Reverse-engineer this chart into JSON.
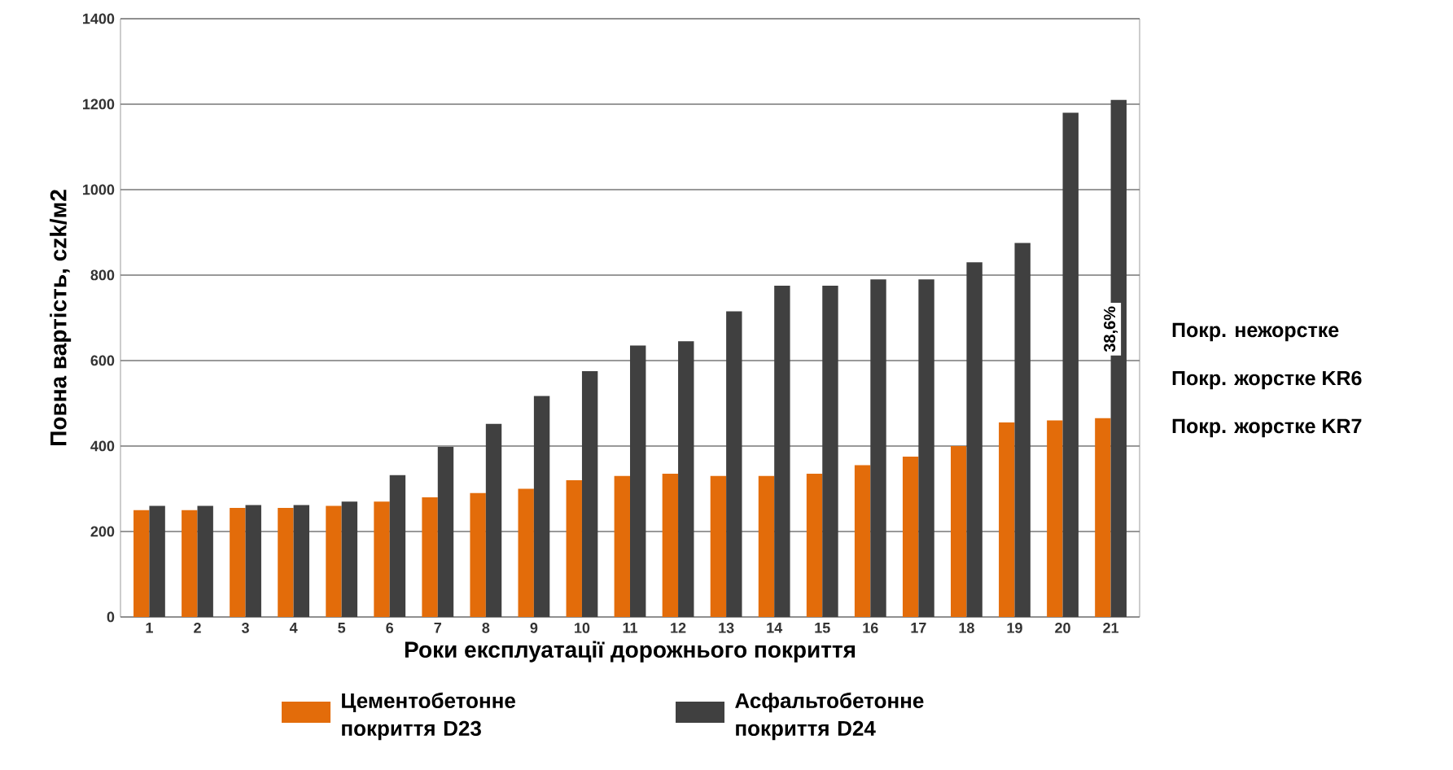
{
  "chart_data": {
    "type": "bar",
    "xlabel": "Роки експлуатації дорожнього покриття",
    "ylabel": "Повна вартість, czk/м2",
    "categories": [
      "1",
      "2",
      "3",
      "4",
      "5",
      "6",
      "7",
      "8",
      "9",
      "10",
      "11",
      "12",
      "13",
      "14",
      "15",
      "16",
      "17",
      "18",
      "19",
      "20",
      "21"
    ],
    "series": [
      {
        "name": "Цементобетонне покриття D23",
        "color": "#e36c0a",
        "values": [
          250,
          250,
          255,
          255,
          260,
          270,
          280,
          290,
          300,
          320,
          330,
          335,
          330,
          330,
          335,
          355,
          375,
          400,
          455,
          460,
          465
        ]
      },
      {
        "name": "Асфальтобетонне покриття D24",
        "color": "#404040",
        "values": [
          260,
          260,
          262,
          262,
          270,
          332,
          398,
          452,
          517,
          575,
          635,
          645,
          715,
          775,
          775,
          790,
          790,
          830,
          875,
          1180,
          1210
        ]
      }
    ],
    "ylim": [
      0,
      1400
    ],
    "yticks": [
      0,
      200,
      400,
      600,
      800,
      1000,
      1200,
      1400
    ],
    "grid": "y",
    "legend": "bottom",
    "annotations": [
      {
        "text": "38,6%",
        "x": "21",
        "y": 655
      },
      "Покр. нежорстке",
      "Покр. жорстке KR6",
      "Покр. жорстке KR7"
    ]
  }
}
